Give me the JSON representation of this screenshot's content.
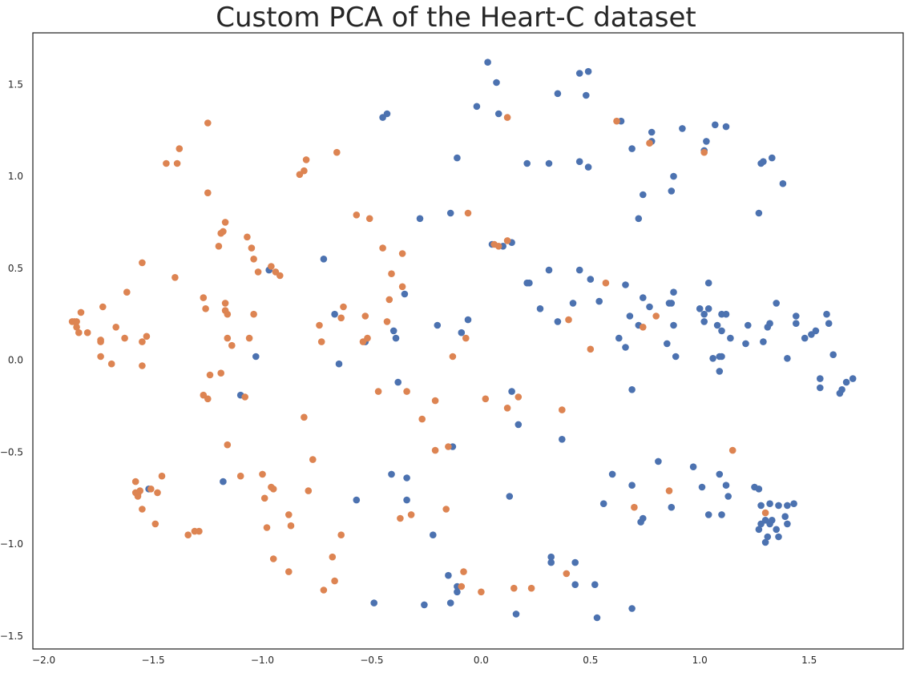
{
  "chart_data": {
    "type": "scatter",
    "title": "Custom PCA of the Heart-C dataset",
    "xlabel": "",
    "ylabel": "",
    "xlim": [
      -2.05,
      1.93
    ],
    "ylim": [
      -1.57,
      1.78
    ],
    "xticks": [
      -2.0,
      -1.5,
      -1.0,
      -0.5,
      0.0,
      0.5,
      1.0,
      1.5
    ],
    "xtick_labels": [
      "−2.0",
      "−1.5",
      "−1.0",
      "−0.5",
      "0.0",
      "0.5",
      "1.0",
      "1.5"
    ],
    "yticks": [
      -1.5,
      -1.0,
      -0.5,
      0.0,
      0.5,
      1.0,
      1.5
    ],
    "ytick_labels": [
      "−1.5",
      "−1.0",
      "−0.5",
      "0.0",
      "0.5",
      "1.0",
      "1.5"
    ],
    "grid": false,
    "legend": false,
    "series": [
      {
        "color": "#4c72b0",
        "points": [
          [
            0.03,
            1.62
          ],
          [
            0.07,
            1.51
          ],
          [
            0.45,
            1.56
          ],
          [
            0.49,
            1.57
          ],
          [
            0.48,
            1.44
          ],
          [
            0.35,
            1.45
          ],
          [
            -0.02,
            1.38
          ],
          [
            0.08,
            1.34
          ],
          [
            -0.43,
            1.34
          ],
          [
            -0.45,
            1.32
          ],
          [
            0.64,
            1.3
          ],
          [
            0.92,
            1.26
          ],
          [
            1.07,
            1.28
          ],
          [
            1.12,
            1.27
          ],
          [
            0.78,
            1.24
          ],
          [
            0.78,
            1.19
          ],
          [
            1.03,
            1.19
          ],
          [
            1.02,
            1.14
          ],
          [
            0.69,
            1.15
          ],
          [
            0.45,
            1.08
          ],
          [
            0.49,
            1.05
          ],
          [
            0.88,
            1.0
          ],
          [
            0.74,
            0.9
          ],
          [
            0.87,
            0.92
          ],
          [
            0.72,
            0.77
          ],
          [
            1.28,
            1.07
          ],
          [
            1.29,
            1.08
          ],
          [
            1.33,
            1.1
          ],
          [
            1.38,
            0.96
          ],
          [
            1.27,
            0.8
          ],
          [
            -0.11,
            1.1
          ],
          [
            0.21,
            1.07
          ],
          [
            0.31,
            1.07
          ],
          [
            -0.14,
            0.8
          ],
          [
            -0.28,
            0.77
          ],
          [
            0.1,
            0.62
          ],
          [
            0.14,
            0.64
          ],
          [
            0.05,
            0.63
          ],
          [
            -0.72,
            0.55
          ],
          [
            -0.97,
            0.49
          ],
          [
            0.31,
            0.49
          ],
          [
            0.45,
            0.49
          ],
          [
            0.5,
            0.44
          ],
          [
            0.21,
            0.42
          ],
          [
            0.22,
            0.42
          ],
          [
            0.66,
            0.41
          ],
          [
            0.74,
            0.34
          ],
          [
            0.88,
            0.37
          ],
          [
            1.04,
            0.42
          ],
          [
            0.27,
            0.28
          ],
          [
            0.42,
            0.31
          ],
          [
            0.54,
            0.32
          ],
          [
            0.77,
            0.29
          ],
          [
            0.86,
            0.31
          ],
          [
            0.87,
            0.31
          ],
          [
            1.0,
            0.28
          ],
          [
            1.04,
            0.28
          ],
          [
            1.1,
            0.25
          ],
          [
            1.12,
            0.25
          ],
          [
            1.22,
            0.19
          ],
          [
            1.32,
            0.2
          ],
          [
            1.31,
            0.18
          ],
          [
            1.35,
            0.31
          ],
          [
            1.44,
            0.24
          ],
          [
            1.44,
            0.2
          ],
          [
            1.48,
            0.12
          ],
          [
            1.51,
            0.14
          ],
          [
            1.53,
            0.16
          ],
          [
            1.58,
            0.25
          ],
          [
            1.59,
            0.2
          ],
          [
            0.35,
            0.21
          ],
          [
            0.68,
            0.24
          ],
          [
            0.72,
            0.19
          ],
          [
            0.88,
            0.19
          ],
          [
            1.02,
            0.21
          ],
          [
            1.02,
            0.25
          ],
          [
            1.08,
            0.19
          ],
          [
            1.1,
            0.16
          ],
          [
            -0.35,
            0.36
          ],
          [
            -0.67,
            0.25
          ],
          [
            -0.4,
            0.16
          ],
          [
            -0.39,
            0.12
          ],
          [
            -0.2,
            0.19
          ],
          [
            -0.09,
            0.15
          ],
          [
            -0.06,
            0.22
          ],
          [
            -0.53,
            0.1
          ],
          [
            0.63,
            0.12
          ],
          [
            0.66,
            0.07
          ],
          [
            0.85,
            0.09
          ],
          [
            0.89,
            0.02
          ],
          [
            1.06,
            0.01
          ],
          [
            1.09,
            0.02
          ],
          [
            1.1,
            0.02
          ],
          [
            1.14,
            0.12
          ],
          [
            1.21,
            0.09
          ],
          [
            1.29,
            0.1
          ],
          [
            1.4,
            0.01
          ],
          [
            1.61,
            0.03
          ],
          [
            1.55,
            -0.1
          ],
          [
            1.55,
            -0.15
          ],
          [
            1.64,
            -0.18
          ],
          [
            1.65,
            -0.16
          ],
          [
            1.67,
            -0.12
          ],
          [
            1.7,
            -0.1
          ],
          [
            1.09,
            -0.06
          ],
          [
            -1.03,
            0.02
          ],
          [
            -0.65,
            -0.02
          ],
          [
            -0.38,
            -0.12
          ],
          [
            -1.1,
            -0.19
          ],
          [
            0.14,
            -0.17
          ],
          [
            0.69,
            -0.16
          ],
          [
            0.17,
            -0.35
          ],
          [
            0.37,
            -0.43
          ],
          [
            -0.13,
            -0.47
          ],
          [
            -1.18,
            -0.66
          ],
          [
            -0.57,
            -0.76
          ],
          [
            -0.41,
            -0.62
          ],
          [
            -0.34,
            -0.64
          ],
          [
            -0.34,
            -0.76
          ],
          [
            -0.22,
            -0.95
          ],
          [
            0.13,
            -0.74
          ],
          [
            0.56,
            -0.78
          ],
          [
            0.6,
            -0.62
          ],
          [
            0.69,
            -0.68
          ],
          [
            0.73,
            -0.88
          ],
          [
            0.74,
            -0.86
          ],
          [
            0.81,
            -0.55
          ],
          [
            0.87,
            -0.8
          ],
          [
            0.97,
            -0.58
          ],
          [
            1.01,
            -0.69
          ],
          [
            1.04,
            -0.84
          ],
          [
            1.09,
            -0.62
          ],
          [
            1.1,
            -0.84
          ],
          [
            1.12,
            -0.68
          ],
          [
            1.13,
            -0.74
          ],
          [
            1.25,
            -0.69
          ],
          [
            1.27,
            -0.7
          ],
          [
            1.27,
            -0.92
          ],
          [
            1.28,
            -0.79
          ],
          [
            1.28,
            -0.89
          ],
          [
            1.3,
            -0.87
          ],
          [
            1.3,
            -0.99
          ],
          [
            1.31,
            -0.96
          ],
          [
            1.32,
            -0.78
          ],
          [
            1.32,
            -0.89
          ],
          [
            1.33,
            -0.87
          ],
          [
            1.35,
            -0.92
          ],
          [
            1.36,
            -0.79
          ],
          [
            1.36,
            -0.96
          ],
          [
            1.39,
            -0.85
          ],
          [
            1.4,
            -0.89
          ],
          [
            1.4,
            -0.79
          ],
          [
            1.43,
            -0.78
          ],
          [
            -1.52,
            -0.7
          ],
          [
            0.32,
            -1.07
          ],
          [
            0.32,
            -1.1
          ],
          [
            0.43,
            -1.1
          ],
          [
            0.43,
            -1.22
          ],
          [
            0.52,
            -1.22
          ],
          [
            0.53,
            -1.4
          ],
          [
            0.16,
            -1.38
          ],
          [
            0.69,
            -1.35
          ],
          [
            -0.14,
            -1.32
          ],
          [
            -0.11,
            -1.23
          ],
          [
            -0.15,
            -1.17
          ],
          [
            -0.26,
            -1.33
          ],
          [
            -0.49,
            -1.32
          ],
          [
            -0.11,
            -1.26
          ]
        ]
      },
      {
        "color": "#dd8452",
        "points": [
          [
            -1.25,
            1.29
          ],
          [
            -1.38,
            1.15
          ],
          [
            -1.39,
            1.07
          ],
          [
            -1.44,
            1.07
          ],
          [
            -0.66,
            1.13
          ],
          [
            -0.8,
            1.09
          ],
          [
            -0.81,
            1.03
          ],
          [
            -0.83,
            1.01
          ],
          [
            -1.25,
            0.91
          ],
          [
            0.12,
            1.32
          ],
          [
            0.62,
            1.3
          ],
          [
            0.77,
            1.18
          ],
          [
            1.02,
            1.13
          ],
          [
            -0.57,
            0.79
          ],
          [
            -0.51,
            0.77
          ],
          [
            -0.06,
            0.8
          ],
          [
            -1.17,
            0.75
          ],
          [
            -1.18,
            0.7
          ],
          [
            -1.19,
            0.69
          ],
          [
            -1.2,
            0.62
          ],
          [
            -1.07,
            0.67
          ],
          [
            -1.05,
            0.61
          ],
          [
            -1.04,
            0.55
          ],
          [
            -1.02,
            0.48
          ],
          [
            -0.96,
            0.51
          ],
          [
            -0.94,
            0.48
          ],
          [
            -0.92,
            0.46
          ],
          [
            -1.4,
            0.45
          ],
          [
            -1.55,
            0.53
          ],
          [
            -1.62,
            0.37
          ],
          [
            -1.27,
            0.34
          ],
          [
            -1.26,
            0.28
          ],
          [
            -1.17,
            0.31
          ],
          [
            -1.17,
            0.27
          ],
          [
            -1.16,
            0.25
          ],
          [
            -1.04,
            0.25
          ],
          [
            -0.45,
            0.61
          ],
          [
            -0.36,
            0.58
          ],
          [
            -0.41,
            0.47
          ],
          [
            -0.36,
            0.4
          ],
          [
            -0.42,
            0.33
          ],
          [
            -0.63,
            0.29
          ],
          [
            -0.64,
            0.23
          ],
          [
            -0.53,
            0.24
          ],
          [
            -0.43,
            0.21
          ],
          [
            -0.74,
            0.19
          ],
          [
            -0.52,
            0.12
          ],
          [
            -0.54,
            0.1
          ],
          [
            0.06,
            0.63
          ],
          [
            0.08,
            0.62
          ],
          [
            0.12,
            0.65
          ],
          [
            0.57,
            0.42
          ],
          [
            0.4,
            0.22
          ],
          [
            0.8,
            0.24
          ],
          [
            0.74,
            0.18
          ],
          [
            0.5,
            0.06
          ],
          [
            -1.87,
            0.21
          ],
          [
            -1.86,
            0.21
          ],
          [
            -1.85,
            0.21
          ],
          [
            -1.85,
            0.18
          ],
          [
            -1.84,
            0.15
          ],
          [
            -1.83,
            0.26
          ],
          [
            -1.8,
            0.15
          ],
          [
            -1.73,
            0.29
          ],
          [
            -1.74,
            0.11
          ],
          [
            -1.74,
            0.1
          ],
          [
            -1.74,
            0.02
          ],
          [
            -1.69,
            -0.02
          ],
          [
            -1.67,
            0.18
          ],
          [
            -1.63,
            0.12
          ],
          [
            -1.55,
            0.1
          ],
          [
            -1.53,
            0.13
          ],
          [
            -1.55,
            -0.03
          ],
          [
            -1.16,
            0.12
          ],
          [
            -1.14,
            0.08
          ],
          [
            -1.06,
            0.12
          ],
          [
            -0.73,
            0.1
          ],
          [
            -0.07,
            0.12
          ],
          [
            -0.13,
            0.02
          ],
          [
            -1.24,
            -0.08
          ],
          [
            -1.19,
            -0.07
          ],
          [
            -1.27,
            -0.19
          ],
          [
            -1.25,
            -0.21
          ],
          [
            -1.08,
            -0.2
          ],
          [
            -0.47,
            -0.17
          ],
          [
            -0.34,
            -0.17
          ],
          [
            -0.21,
            -0.22
          ],
          [
            -0.27,
            -0.32
          ],
          [
            0.02,
            -0.21
          ],
          [
            0.12,
            -0.26
          ],
          [
            0.17,
            -0.2
          ],
          [
            0.37,
            -0.27
          ],
          [
            -0.81,
            -0.31
          ],
          [
            -1.16,
            -0.46
          ],
          [
            -0.77,
            -0.54
          ],
          [
            -0.21,
            -0.49
          ],
          [
            -0.15,
            -0.47
          ],
          [
            1.15,
            -0.49
          ],
          [
            -1.58,
            -0.66
          ],
          [
            -1.58,
            -0.72
          ],
          [
            -1.57,
            -0.73
          ],
          [
            -1.57,
            -0.74
          ],
          [
            -1.56,
            -0.71
          ],
          [
            -1.55,
            -0.81
          ],
          [
            -1.51,
            -0.7
          ],
          [
            -1.49,
            -0.89
          ],
          [
            -1.48,
            -0.72
          ],
          [
            -1.46,
            -0.63
          ],
          [
            -1.34,
            -0.95
          ],
          [
            -1.31,
            -0.93
          ],
          [
            -1.29,
            -0.93
          ],
          [
            -1.1,
            -0.63
          ],
          [
            -1.0,
            -0.62
          ],
          [
            -0.99,
            -0.75
          ],
          [
            -0.96,
            -0.69
          ],
          [
            -0.95,
            -0.7
          ],
          [
            -0.98,
            -0.91
          ],
          [
            -0.88,
            -0.84
          ],
          [
            -0.87,
            -0.9
          ],
          [
            -0.79,
            -0.71
          ],
          [
            -0.64,
            -0.95
          ],
          [
            -0.68,
            -1.07
          ],
          [
            -0.67,
            -1.2
          ],
          [
            -0.72,
            -1.25
          ],
          [
            -0.95,
            -1.08
          ],
          [
            -0.88,
            -1.15
          ],
          [
            -0.37,
            -0.86
          ],
          [
            -0.32,
            -0.84
          ],
          [
            -0.16,
            -0.81
          ],
          [
            0.7,
            -0.8
          ],
          [
            0.86,
            -0.71
          ],
          [
            1.3,
            -0.83
          ],
          [
            -0.08,
            -1.15
          ],
          [
            -0.09,
            -1.23
          ],
          [
            0.0,
            -1.26
          ],
          [
            0.15,
            -1.24
          ],
          [
            0.23,
            -1.24
          ],
          [
            0.39,
            -1.16
          ]
        ]
      }
    ]
  }
}
